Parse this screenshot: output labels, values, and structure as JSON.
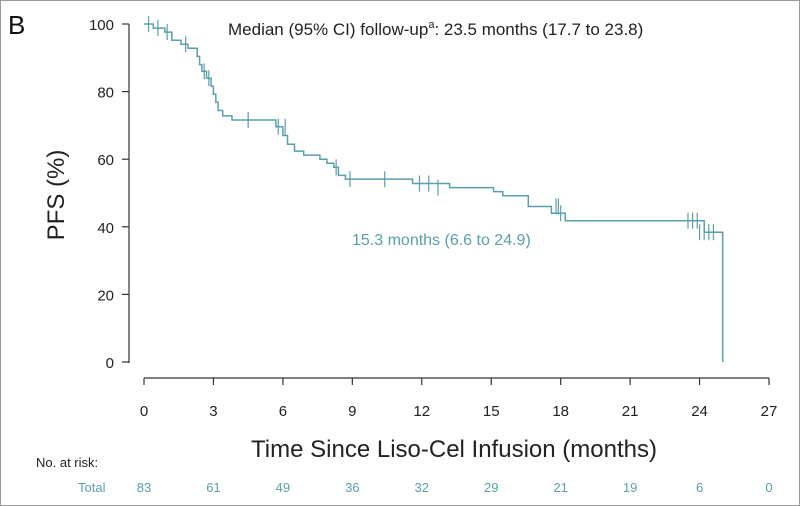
{
  "panel_label": "B",
  "chart_data": {
    "type": "line",
    "title": "",
    "ylabel": "PFS (%)",
    "xlabel": "Time Since Liso-Cel Infusion (months)",
    "xlim": [
      0,
      27
    ],
    "ylim": [
      0,
      100
    ],
    "x_ticks": [
      0,
      3,
      6,
      9,
      12,
      15,
      18,
      21,
      24,
      27
    ],
    "y_ticks": [
      0,
      20,
      40,
      60,
      80,
      100
    ],
    "grid": false,
    "series_color": "#5a9fae",
    "annotation_followup": {
      "prefix": "Median (95% CI) follow-up",
      "superscript": "a",
      "suffix": ": 23.5 months (17.7 to 23.8)"
    },
    "annotation_median": "15.3 months (6.6 to 24.9)",
    "series": [
      {
        "steps": [
          [
            0,
            100
          ],
          [
            0.4,
            98.8
          ],
          [
            0.9,
            97.6
          ],
          [
            1.2,
            95.2
          ],
          [
            1.6,
            94.0
          ],
          [
            1.9,
            92.8
          ],
          [
            2.3,
            90.4
          ],
          [
            2.4,
            88.0
          ],
          [
            2.5,
            86.0
          ],
          [
            2.7,
            84.0
          ],
          [
            2.9,
            81.6
          ],
          [
            3.0,
            79.2
          ],
          [
            3.1,
            76.8
          ],
          [
            3.2,
            74.4
          ],
          [
            3.4,
            72.8
          ],
          [
            3.8,
            71.6
          ],
          [
            5.7,
            69.6
          ],
          [
            6.0,
            67.0
          ],
          [
            6.2,
            64.4
          ],
          [
            6.5,
            62.4
          ],
          [
            6.9,
            61.2
          ],
          [
            7.6,
            60.0
          ],
          [
            7.9,
            58.8
          ],
          [
            8.2,
            57.6
          ],
          [
            8.4,
            55.2
          ],
          [
            8.7,
            54.1
          ],
          [
            11.6,
            52.8
          ],
          [
            13.2,
            51.6
          ],
          [
            15.1,
            50.4
          ],
          [
            15.5,
            49.2
          ],
          [
            16.6,
            46.0
          ],
          [
            17.6,
            44.0
          ],
          [
            18.2,
            41.8
          ],
          [
            24.2,
            38.4
          ],
          [
            25.0,
            0.0
          ]
        ],
        "censors": [
          [
            0.2,
            100
          ],
          [
            0.6,
            98.8
          ],
          [
            1.0,
            97.6
          ],
          [
            1.8,
            94.0
          ],
          [
            2.6,
            86.0
          ],
          [
            2.8,
            84.0
          ],
          [
            4.5,
            71.6
          ],
          [
            5.8,
            69.6
          ],
          [
            6.1,
            69.6
          ],
          [
            8.3,
            57.6
          ],
          [
            8.9,
            54.1
          ],
          [
            10.4,
            54.1
          ],
          [
            11.9,
            52.8
          ],
          [
            12.3,
            52.8
          ],
          [
            12.7,
            51.6
          ],
          [
            17.8,
            46.0
          ],
          [
            17.9,
            46.0
          ],
          [
            18.0,
            44.0
          ],
          [
            23.5,
            41.8
          ],
          [
            23.7,
            41.8
          ],
          [
            23.9,
            41.8
          ],
          [
            24.0,
            38.4
          ],
          [
            24.2,
            38.4
          ],
          [
            24.4,
            38.4
          ],
          [
            24.6,
            38.4
          ]
        ]
      }
    ]
  },
  "risk_table": {
    "header": "No. at risk:",
    "row_label": "Total",
    "values": [
      "83",
      "61",
      "49",
      "36",
      "32",
      "29",
      "21",
      "19",
      "6",
      "0"
    ]
  }
}
